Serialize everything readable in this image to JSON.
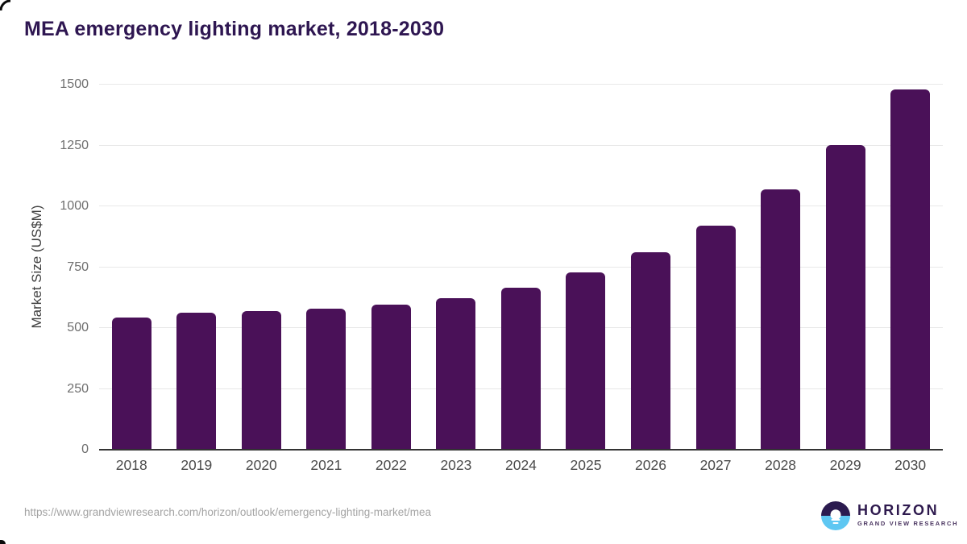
{
  "header": {
    "title": "MEA emergency lighting market, 2018-2030"
  },
  "chart_data": {
    "type": "bar",
    "title": "MEA emergency lighting market, 2018-2030",
    "categories": [
      "2018",
      "2019",
      "2020",
      "2021",
      "2022",
      "2023",
      "2024",
      "2025",
      "2026",
      "2027",
      "2028",
      "2029",
      "2030"
    ],
    "values": [
      543,
      564,
      568,
      580,
      596,
      622,
      665,
      727,
      812,
      919,
      1068,
      1253,
      1481
    ],
    "xlabel": "",
    "ylabel": "Market Size (US$M)",
    "ylim": [
      0,
      1500
    ],
    "yticks": [
      0,
      250,
      500,
      750,
      1000,
      1250,
      1500
    ],
    "grid": true,
    "legend": false,
    "bar_color": "#4a1158"
  },
  "footer": {
    "source_url": "https://www.grandviewresearch.com/horizon/outlook/emergency-lighting-market/mea",
    "logo": {
      "name": "HORIZON",
      "subtitle": "GRAND VIEW RESEARCH"
    }
  },
  "colors": {
    "title_text": "#2e1651",
    "bar": "#4a1158",
    "axis_line": "#333333",
    "gridline": "#e8e8e8",
    "y_tick_text": "#6e6e6e",
    "x_tick_text": "#4a4a4a",
    "url_text": "#a3a3a3",
    "logo_purple": "#2e1a4e",
    "logo_blue": "#5ec7f2"
  }
}
